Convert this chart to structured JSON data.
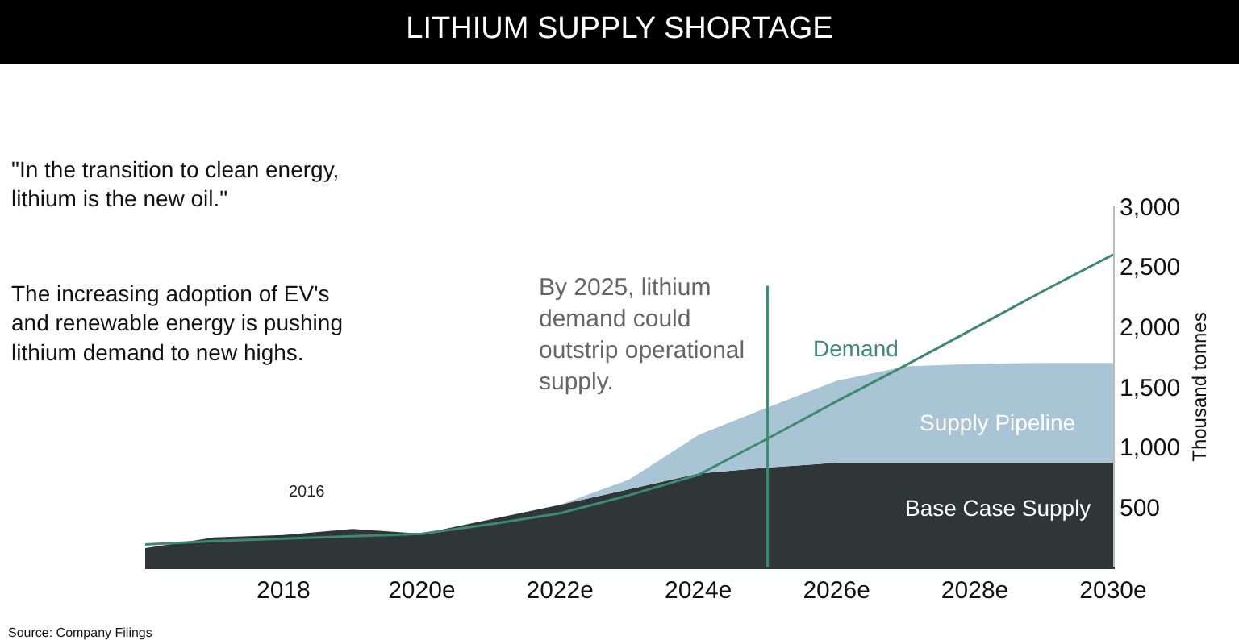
{
  "chart_data": {
    "type": "area",
    "stacked": true,
    "title": "LITHIUM SUPPLY SHORTAGE",
    "ylabel": "Thousand tonnes",
    "x": [
      2016,
      2017,
      2018,
      2019,
      2020,
      2021,
      2022,
      2023,
      2024,
      2025,
      2026,
      2027,
      2028,
      2029,
      2030
    ],
    "series": [
      {
        "name": "Base Case Supply",
        "color": "#2f3638",
        "values": [
          160,
          250,
          270,
          320,
          280,
          400,
          520,
          650,
          780,
          830,
          870,
          870,
          870,
          870,
          870
        ]
      },
      {
        "name": "Supply Pipeline",
        "color": "#a9c4d4",
        "values": [
          0,
          0,
          0,
          0,
          0,
          0,
          0,
          80,
          320,
          500,
          680,
          800,
          820,
          830,
          830
        ]
      },
      {
        "name": "Demand",
        "type": "line",
        "color": "#3d8a70",
        "values": [
          190,
          220,
          240,
          260,
          280,
          360,
          450,
          600,
          770,
          1070,
          1380,
          1680,
          1990,
          2300,
          2600
        ]
      }
    ],
    "xlim": [
      2016,
      2030
    ],
    "xticks": [
      2018,
      {
        "value": 2020,
        "label": "2020e"
      },
      {
        "value": 2022,
        "label": "2022e"
      },
      {
        "value": 2024,
        "label": "2024e"
      },
      {
        "value": 2026,
        "label": "2026e"
      },
      {
        "value": 2028,
        "label": "2028e"
      },
      {
        "value": 2030,
        "label": "2030e"
      }
    ],
    "ylim": [
      0,
      3000
    ],
    "yticks": [
      {
        "value": 500,
        "label": "500"
      },
      {
        "value": 1000,
        "label": "1,000"
      },
      {
        "value": 1500,
        "label": "1,500"
      },
      {
        "value": 2000,
        "label": "2,000"
      },
      {
        "value": 2500,
        "label": "2,500"
      },
      {
        "value": 3000,
        "label": "3,000"
      }
    ],
    "ref_lines": [
      {
        "axis": "x",
        "value": 2025,
        "label": "By 2025, lithium\ndemand could\noutstrip operational\nsupply.",
        "color": "#3d8a70"
      }
    ],
    "annotations": [
      "\"In the transition to clean energy,\nlithium is the new oil.\"",
      "The increasing adoption of EV's\nand renewable energy is pushing\nlithium demand to new highs.",
      "2016",
      "Source: Company Filings"
    ],
    "legend": false,
    "marker": "none",
    "line_style": "solid"
  }
}
